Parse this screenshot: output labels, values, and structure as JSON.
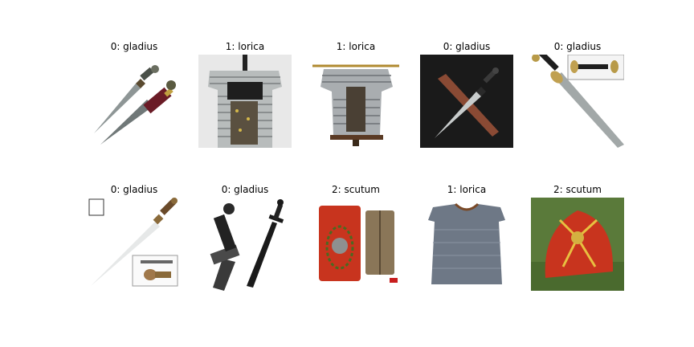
{
  "tiles": [
    {
      "label": "0: gladius",
      "subject": "gladius-sword-icon"
    },
    {
      "label": "1: lorica",
      "subject": "lorica-armor-icon"
    },
    {
      "label": "1: lorica",
      "subject": "lorica-armor-icon"
    },
    {
      "label": "0: gladius",
      "subject": "gladius-sword-icon"
    },
    {
      "label": "0: gladius",
      "subject": "gladius-sword-icon"
    },
    {
      "label": "0: gladius",
      "subject": "gladius-sword-icon"
    },
    {
      "label": "0: gladius",
      "subject": "gladius-sword-icon"
    },
    {
      "label": "2: scutum",
      "subject": "scutum-shield-icon"
    },
    {
      "label": "1: lorica",
      "subject": "lorica-chainmail-icon"
    },
    {
      "label": "2: scutum",
      "subject": "scutum-shield-icon"
    }
  ]
}
